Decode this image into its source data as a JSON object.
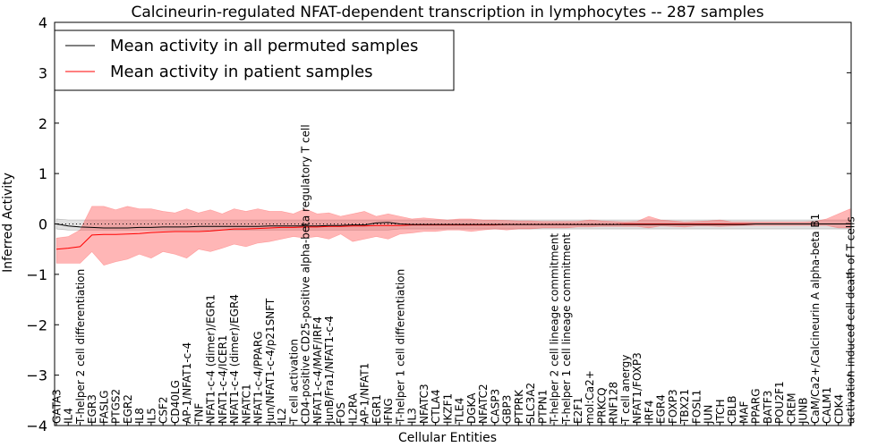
{
  "chart_data": {
    "type": "line",
    "title": "Calcineurin-regulated NFAT-dependent transcription in lymphocytes -- 287 samples",
    "xlabel": "Cellular Entities",
    "ylabel": "Inferred Activity",
    "ylim": [
      -4,
      4
    ],
    "yticks": [
      -4,
      -3,
      -2,
      -1,
      0,
      1,
      2,
      3,
      4
    ],
    "ytick_labels": [
      "−4",
      "−3",
      "−2",
      "−1",
      "0",
      "1",
      "2",
      "3",
      "4"
    ],
    "legend_position": "top-left",
    "baseline_style": "dotted",
    "categories": [
      "GATA3",
      "IL4",
      "T-helper 2 cell differentiation",
      "EGR3",
      "FASLG",
      "PTGS2",
      "EGR2",
      "IL8",
      "IL5",
      "CSF2",
      "CD40LG",
      "AP-1/NFAT1-c-4",
      "TNF",
      "NFAT1-c-4 (dimer)/EGR1",
      "NFAT1-c-4/ICER1",
      "NFAT1-c-4 (dimer)/EGR4",
      "NFATC1",
      "NFAT1-c-4/PPARG",
      "Jun/NFAT1-c-4/p21SNFT",
      "IL2",
      "T cell activation",
      "CD4-positive CD25-positive alpha-beta regulatory T cell",
      "NFAT1-c-4/MAF/IRF4",
      "JunB/Fra1/NFAT1-c-4",
      "FOS",
      "IL2RA",
      "AP-1/NFAT1",
      "EGR1",
      "IFNG",
      "T-helper 1 cell differentiation",
      "IL3",
      "NFATC3",
      "CTLA4",
      "IKZF1",
      "TLE4",
      "DGKA",
      "NFATC2",
      "CASP3",
      "GBP3",
      "PTPRK",
      "SLC3A2",
      "PTPN1",
      "T-helper 2 cell lineage commitment",
      "T-helper 1 cell lineage commitment",
      "E2F1",
      "mol:Ca2+",
      "PRKCQ",
      "RNF128",
      "T cell anergy",
      "NFAT1/FOXP3",
      "IRF4",
      "EGR4",
      "FOXP3",
      "TBX21",
      "FOSL1",
      "JUN",
      "ITCH",
      "CBLB",
      "MAF",
      "PPARG",
      "BATF3",
      "POU2F1",
      "CREM",
      "JUNB",
      "CaM/Ca2+/Calcineurin A alpha-beta B1",
      "CALM1",
      "CDK4",
      "activation-induced cell death of T cells"
    ],
    "series": [
      {
        "name": "Mean activity in all permuted samples",
        "color": "#000000",
        "values": [
          0.0,
          -0.04,
          -0.06,
          -0.07,
          -0.08,
          -0.08,
          -0.08,
          -0.07,
          -0.07,
          -0.06,
          -0.06,
          -0.06,
          -0.05,
          -0.05,
          -0.05,
          -0.05,
          -0.05,
          -0.05,
          -0.04,
          -0.04,
          -0.04,
          -0.04,
          -0.04,
          -0.03,
          -0.03,
          -0.02,
          -0.02,
          0.02,
          0.03,
          0.0,
          -0.01,
          -0.01,
          -0.01,
          -0.01,
          -0.01,
          -0.01,
          -0.01,
          -0.01,
          -0.01,
          -0.01,
          -0.01,
          -0.01,
          -0.01,
          -0.01,
          -0.01,
          -0.01,
          -0.01,
          -0.01,
          -0.01,
          -0.01,
          -0.01,
          -0.01,
          -0.01,
          -0.01,
          -0.01,
          -0.01,
          -0.01,
          -0.01,
          -0.01,
          0.0,
          0.0,
          0.0,
          0.0,
          0.0,
          0.0,
          0.0,
          0.0,
          0.0
        ],
        "band_lower": [
          -0.1,
          -0.12,
          -0.12,
          -0.12,
          -0.12,
          -0.12,
          -0.12,
          -0.12,
          -0.12,
          -0.12,
          -0.12,
          -0.12,
          -0.12,
          -0.12,
          -0.12,
          -0.12,
          -0.12,
          -0.12,
          -0.12,
          -0.12,
          -0.12,
          -0.12,
          -0.12,
          -0.12,
          -0.12,
          -0.12,
          -0.12,
          -0.12,
          -0.12,
          -0.1,
          -0.1,
          -0.1,
          -0.1,
          -0.1,
          -0.1,
          -0.1,
          -0.1,
          -0.1,
          -0.1,
          -0.1,
          -0.1,
          -0.1,
          -0.1,
          -0.1,
          -0.1,
          -0.1,
          -0.1,
          -0.1,
          -0.1,
          -0.1,
          -0.1,
          -0.1,
          -0.1,
          -0.1,
          -0.1,
          -0.1,
          -0.1,
          -0.1,
          -0.1,
          -0.1,
          -0.1,
          -0.1,
          -0.1,
          -0.1,
          -0.1,
          -0.1,
          -0.1,
          -0.1
        ],
        "band_upper": [
          0.1,
          0.08,
          0.08,
          0.08,
          0.08,
          0.08,
          0.08,
          0.08,
          0.08,
          0.08,
          0.08,
          0.08,
          0.08,
          0.08,
          0.08,
          0.08,
          0.08,
          0.08,
          0.08,
          0.08,
          0.08,
          0.08,
          0.08,
          0.08,
          0.08,
          0.08,
          0.08,
          0.08,
          0.08,
          0.08,
          0.08,
          0.08,
          0.08,
          0.08,
          0.08,
          0.08,
          0.08,
          0.08,
          0.08,
          0.08,
          0.08,
          0.08,
          0.08,
          0.08,
          0.08,
          0.08,
          0.08,
          0.08,
          0.08,
          0.08,
          0.08,
          0.08,
          0.08,
          0.08,
          0.08,
          0.08,
          0.08,
          0.08,
          0.08,
          0.08,
          0.08,
          0.08,
          0.08,
          0.08,
          0.08,
          0.08,
          0.08,
          0.08
        ]
      },
      {
        "name": "Mean activity in patient samples",
        "color": "#ff0000",
        "values": [
          -0.5,
          -0.48,
          -0.45,
          -0.22,
          -0.21,
          -0.21,
          -0.2,
          -0.19,
          -0.17,
          -0.16,
          -0.15,
          -0.15,
          -0.15,
          -0.14,
          -0.12,
          -0.1,
          -0.1,
          -0.09,
          -0.08,
          -0.07,
          -0.07,
          -0.06,
          -0.06,
          -0.05,
          -0.05,
          -0.04,
          -0.04,
          -0.03,
          -0.03,
          -0.03,
          -0.02,
          -0.02,
          -0.02,
          -0.02,
          -0.02,
          -0.02,
          -0.02,
          -0.02,
          -0.01,
          -0.01,
          -0.01,
          -0.01,
          -0.01,
          -0.01,
          -0.01,
          -0.01,
          -0.01,
          -0.01,
          0.0,
          0.0,
          0.0,
          0.0,
          0.0,
          0.0,
          0.0,
          0.0,
          0.0,
          0.0,
          0.0,
          0.0,
          0.0,
          0.0,
          0.0,
          0.0,
          0.0,
          0.0,
          0.0,
          0.0
        ],
        "band_lower": [
          -0.78,
          -0.78,
          -0.78,
          -0.55,
          -0.82,
          -0.75,
          -0.7,
          -0.6,
          -0.68,
          -0.55,
          -0.6,
          -0.68,
          -0.5,
          -0.55,
          -0.48,
          -0.4,
          -0.45,
          -0.38,
          -0.35,
          -0.3,
          -0.25,
          -0.28,
          -0.25,
          -0.3,
          -0.2,
          -0.35,
          -0.3,
          -0.25,
          -0.3,
          -0.2,
          -0.18,
          -0.15,
          -0.15,
          -0.12,
          -0.12,
          -0.15,
          -0.12,
          -0.1,
          -0.12,
          -0.1,
          -0.1,
          -0.08,
          -0.08,
          -0.08,
          -0.06,
          -0.06,
          -0.05,
          -0.05,
          -0.05,
          -0.05,
          -0.08,
          -0.04,
          -0.05,
          -0.06,
          -0.04,
          -0.04,
          -0.05,
          -0.04,
          -0.03,
          -0.03,
          -0.03,
          -0.03,
          -0.03,
          -0.03,
          -0.03,
          -0.03,
          -0.08,
          -0.08
        ],
        "band_upper": [
          -0.28,
          -0.25,
          -0.12,
          0.35,
          0.35,
          0.28,
          0.35,
          0.3,
          0.3,
          0.25,
          0.22,
          0.3,
          0.22,
          0.28,
          0.2,
          0.3,
          0.25,
          0.3,
          0.25,
          0.25,
          0.2,
          0.3,
          0.2,
          0.22,
          0.15,
          0.2,
          0.25,
          0.15,
          0.2,
          0.15,
          0.1,
          0.12,
          0.1,
          0.08,
          0.1,
          0.1,
          0.08,
          0.08,
          0.07,
          0.06,
          0.06,
          0.05,
          0.05,
          0.05,
          0.05,
          0.08,
          0.06,
          0.05,
          0.04,
          0.05,
          0.15,
          0.08,
          0.06,
          0.04,
          0.05,
          0.06,
          0.08,
          0.04,
          0.04,
          0.04,
          0.04,
          0.04,
          0.04,
          0.04,
          0.05,
          0.1,
          0.2,
          0.3
        ]
      }
    ]
  }
}
